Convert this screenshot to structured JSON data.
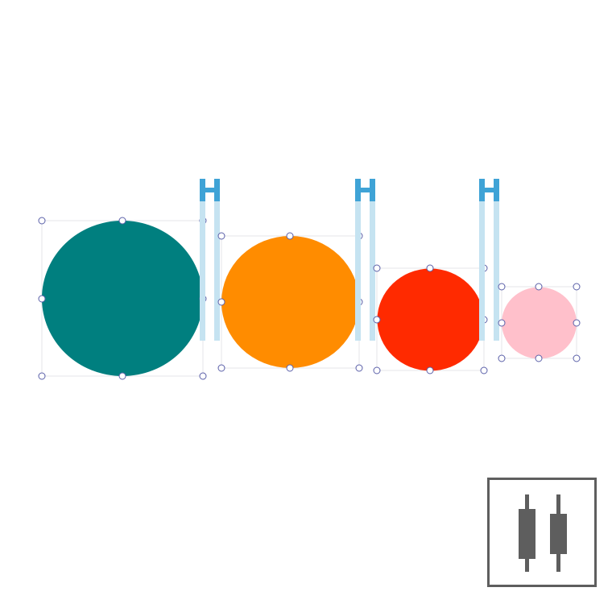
{
  "canvas": {
    "shapes": [
      {
        "id": "circle-teal",
        "fill": "#007f7f",
        "selected": true
      },
      {
        "id": "circle-orange",
        "fill": "#ff8c00",
        "selected": true
      },
      {
        "id": "circle-red",
        "fill": "#ff2a00",
        "selected": true
      },
      {
        "id": "circle-pink",
        "fill": "#ffc0cb",
        "selected": true
      }
    ],
    "spacing_guides": {
      "count": 3,
      "color": "#3fa3d6",
      "bar_color": "#c5e3f1"
    }
  },
  "toolbar": {
    "align_tool": {
      "icon": "distribute-horizontal-icon",
      "color": "#5e5e5e"
    }
  }
}
